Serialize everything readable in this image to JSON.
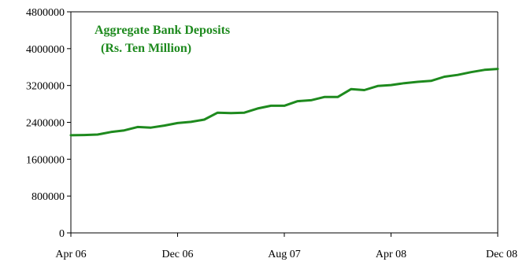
{
  "chart_data": {
    "type": "line",
    "title": "Aggregate Bank Deposits",
    "subtitle": "(Rs. Ten Million)",
    "xlabel": "",
    "ylabel": "",
    "ylim": [
      0,
      4800000
    ],
    "yticks": [
      0,
      800000,
      1600000,
      2400000,
      3200000,
      4000000,
      4800000
    ],
    "ytick_labels": [
      "0",
      "800000",
      "1600000",
      "2400000",
      "3200000",
      "4000000",
      "4800000"
    ],
    "xtick_labels": [
      "Apr 06",
      "Dec 06",
      "Aug 07",
      "Apr 08",
      "Dec 08"
    ],
    "xtick_positions": [
      0,
      8,
      16,
      24,
      32
    ],
    "grid": false,
    "legend": "none",
    "series_color": "#1e8a1e",
    "x": [
      "Apr 06",
      "May 06",
      "Jun 06",
      "Jul 06",
      "Aug 06",
      "Sep 06",
      "Oct 06",
      "Nov 06",
      "Dec 06",
      "Jan 07",
      "Feb 07",
      "Mar 07",
      "Apr 07",
      "May 07",
      "Jun 07",
      "Jul 07",
      "Aug 07",
      "Sep 07",
      "Oct 07",
      "Nov 07",
      "Dec 07",
      "Jan 08",
      "Feb 08",
      "Mar 08",
      "Apr 08",
      "May 08",
      "Jun 08",
      "Jul 08",
      "Aug 08",
      "Sep 08",
      "Oct 08",
      "Nov 08",
      "Dec 08"
    ],
    "values": [
      2120000,
      2125000,
      2135000,
      2190000,
      2225000,
      2300000,
      2285000,
      2330000,
      2385000,
      2410000,
      2460000,
      2610000,
      2600000,
      2610000,
      2700000,
      2760000,
      2760000,
      2860000,
      2880000,
      2950000,
      2950000,
      3120000,
      3100000,
      3190000,
      3210000,
      3250000,
      3280000,
      3300000,
      3390000,
      3430000,
      3490000,
      3540000,
      3560000
    ]
  }
}
